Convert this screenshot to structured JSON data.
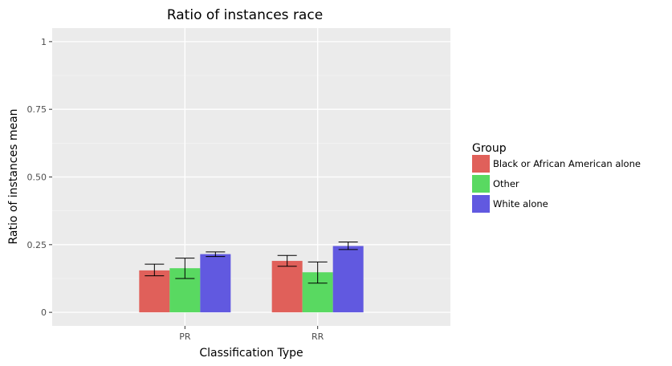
{
  "chart_data": {
    "type": "bar",
    "title": "Ratio of instances race",
    "xlabel": "Classification Type",
    "ylabel": "Ratio of instances mean",
    "categories": [
      "PR",
      "RR"
    ],
    "ylim": [
      -0.05,
      1.05
    ],
    "yticks": [
      0,
      0.25,
      0.5,
      0.75,
      1
    ],
    "ytick_labels": [
      "0",
      "0.25",
      "0.50",
      "0.75",
      "1"
    ],
    "grid": true,
    "legend_title": "Group",
    "legend_position": "right",
    "series": [
      {
        "name": "Black or African American alone",
        "color": "#e0605a",
        "values": [
          0.155,
          0.19
        ],
        "err_low": [
          0.135,
          0.17
        ],
        "err_high": [
          0.178,
          0.21
        ]
      },
      {
        "name": "Other",
        "color": "#59d961",
        "values": [
          0.163,
          0.148
        ],
        "err_low": [
          0.125,
          0.108
        ],
        "err_high": [
          0.2,
          0.186
        ]
      },
      {
        "name": "White alone",
        "color": "#6159e0",
        "values": [
          0.215,
          0.245
        ],
        "err_low": [
          0.206,
          0.232
        ],
        "err_high": [
          0.223,
          0.26
        ]
      }
    ]
  }
}
